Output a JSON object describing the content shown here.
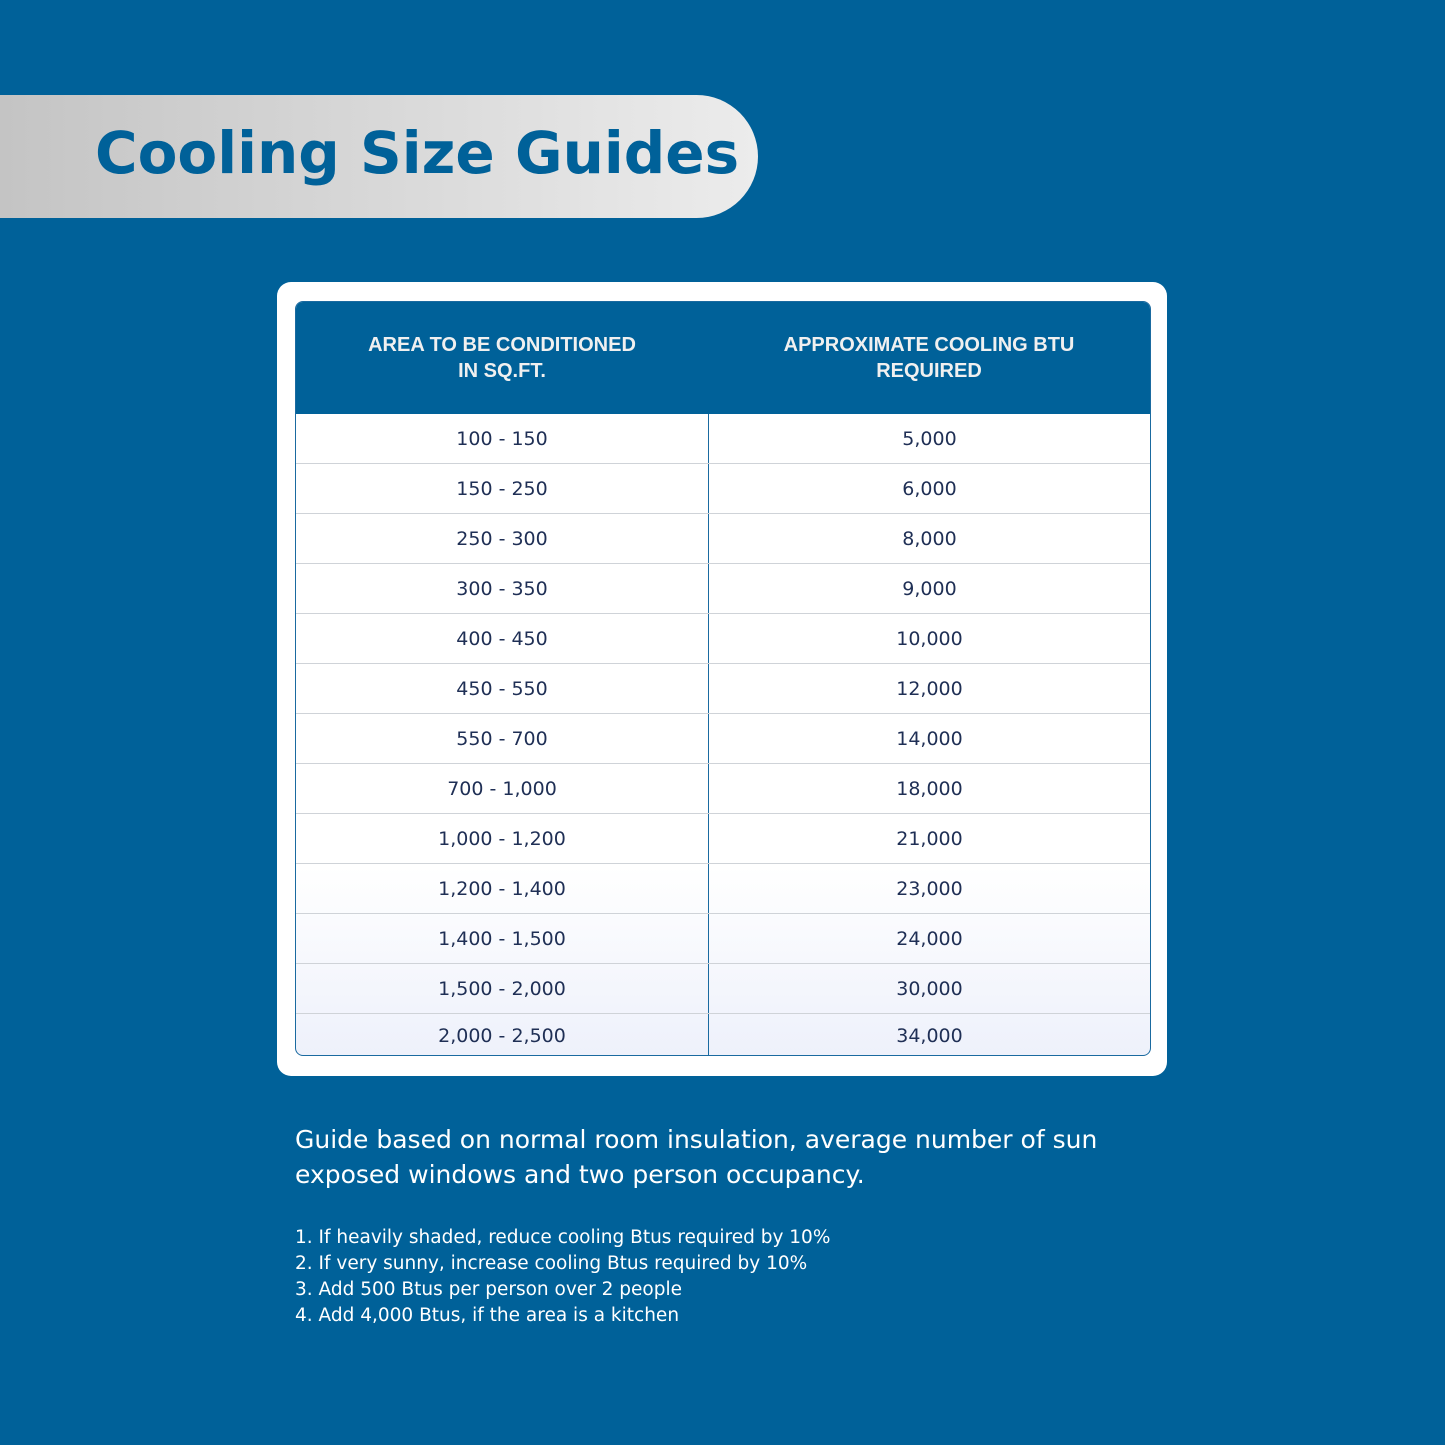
{
  "title": "Cooling Size Guides",
  "table": {
    "headers": [
      "AREA TO BE CONDITIONED\nIN SQ.FT.",
      "APPROXIMATE COOLING BTU\nREQUIRED"
    ],
    "rows": [
      [
        "100 - 150",
        "5,000"
      ],
      [
        "150 - 250",
        "6,000"
      ],
      [
        "250 - 300",
        "8,000"
      ],
      [
        "300 - 350",
        "9,000"
      ],
      [
        "400 - 450",
        "10,000"
      ],
      [
        "450 - 550",
        "12,000"
      ],
      [
        "550 - 700",
        "14,000"
      ],
      [
        "700 - 1,000",
        "18,000"
      ],
      [
        "1,000 - 1,200",
        "21,000"
      ],
      [
        "1,200 - 1,400",
        "23,000"
      ],
      [
        "1,400 - 1,500",
        "24,000"
      ],
      [
        "1,500 - 2,000",
        "30,000"
      ],
      [
        "2,000 - 2,500",
        "34,000"
      ]
    ]
  },
  "guide_text": "Guide based on normal room insulation, average number of sun exposed windows and two person occupancy.",
  "notes": [
    "1.  If heavily shaded, reduce cooling Btus required by 10%",
    "2. If very sunny, increase cooling Btus required by 10%",
    "3. Add 500 Btus per person over 2 people",
    "4. Add 4,000 Btus, if the area is a kitchen"
  ],
  "colors": {
    "background": "#006199",
    "header": "#006199",
    "banner": "#d8d8d8"
  }
}
